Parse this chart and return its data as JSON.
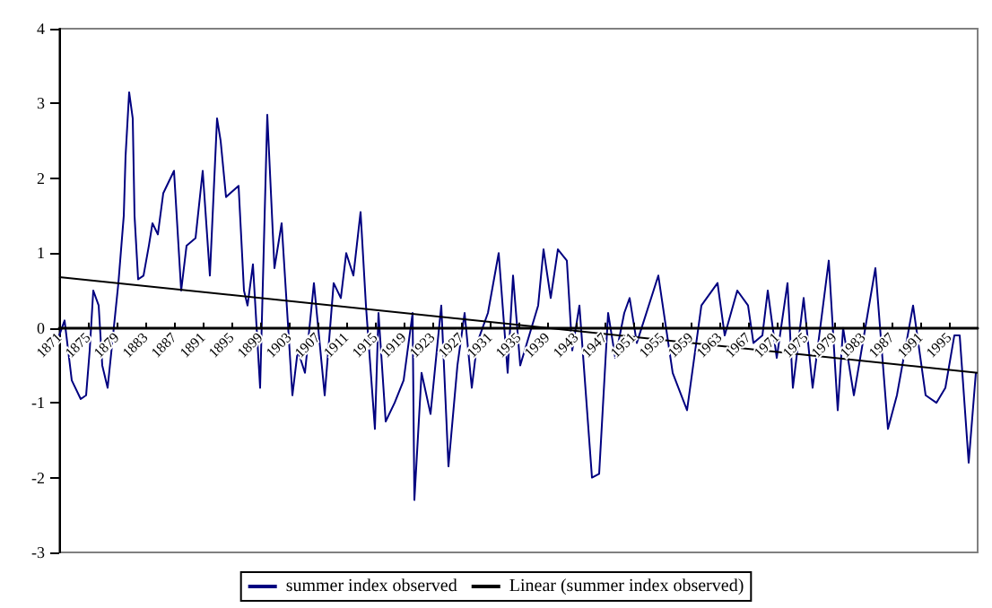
{
  "chart_data": {
    "type": "line",
    "xlim": [
      1871,
      1999
    ],
    "xticks": [
      1871,
      1875,
      1879,
      1883,
      1887,
      1891,
      1895,
      1899,
      1903,
      1907,
      1911,
      1915,
      1919,
      1923,
      1927,
      1931,
      1935,
      1939,
      1943,
      1947,
      1951,
      1955,
      1959,
      1963,
      1967,
      1971,
      1975,
      1979,
      1983,
      1987,
      1991,
      1995
    ],
    "ylim": [
      -3,
      4
    ],
    "yticks": [
      -3,
      -2,
      -1,
      0,
      1,
      2,
      3,
      4
    ],
    "grid": false,
    "legend": "bottom",
    "marker": "none",
    "line_style": "solid",
    "series": [
      {
        "name": "summer index observed",
        "color": "#000080",
        "x": [
          1871,
          1871.75,
          1872.75,
          1874,
          1874.75,
          1875.25,
          1875.75,
          1876.5,
          1877,
          1877.75,
          1878.5,
          1879.25,
          1880,
          1880.25,
          1880.75,
          1881.25,
          1881.5,
          1882,
          1882.75,
          1883.5,
          1884,
          1884.75,
          1885.5,
          1887,
          1888,
          1888.75,
          1890,
          1891,
          1892,
          1893,
          1893.5,
          1894.25,
          1896,
          1896.75,
          1897.25,
          1898,
          1899,
          1900,
          1901,
          1902,
          1903.5,
          1904.25,
          1905.25,
          1906.5,
          1908,
          1909.25,
          1910.25,
          1911,
          1912,
          1913,
          1913.75,
          1915,
          1915.5,
          1916.5,
          1917.75,
          1919,
          1920.25,
          1920.5,
          1921.5,
          1922.75,
          1924.25,
          1925.25,
          1926.5,
          1927.5,
          1928.5,
          1929.25,
          1930.75,
          1932.25,
          1933.5,
          1934.25,
          1935.25,
          1937.75,
          1938.5,
          1939.5,
          1940.5,
          1941.75,
          1942.5,
          1943.5,
          1945.25,
          1946.25,
          1947.5,
          1948.5,
          1949.75,
          1950.5,
          1951.5,
          1954.5,
          1956.5,
          1958.5,
          1960.5,
          1962.75,
          1963.75,
          1965.5,
          1967,
          1967.75,
          1969,
          1969.75,
          1971,
          1972.5,
          1973.25,
          1974.75,
          1976,
          1978.25,
          1979.5,
          1980.25,
          1981.75,
          1984.75,
          1986.5,
          1987.75,
          1990,
          1991.75,
          1993.25,
          1994.5,
          1995.75,
          1996.5,
          1997.75,
          1998.75
        ],
        "values": [
          -0.1,
          0.1,
          -0.7,
          -0.95,
          -0.9,
          -0.3,
          0.5,
          0.3,
          -0.5,
          -0.8,
          -0.1,
          0.6,
          1.5,
          2.3,
          3.15,
          2.8,
          1.5,
          0.65,
          0.7,
          1.1,
          1.4,
          1.25,
          1.8,
          2.1,
          0.5,
          1.1,
          1.2,
          2.1,
          0.7,
          2.8,
          2.5,
          1.75,
          1.9,
          0.5,
          0.3,
          0.85,
          -0.8,
          2.85,
          0.8,
          1.4,
          -0.9,
          -0.3,
          -0.6,
          0.6,
          -0.9,
          0.6,
          0.4,
          1.0,
          0.7,
          1.55,
          0.3,
          -1.35,
          0.2,
          -1.25,
          -1.0,
          -0.7,
          0.2,
          -2.3,
          -0.6,
          -1.15,
          0.3,
          -1.85,
          -0.5,
          0.2,
          -0.8,
          -0.2,
          0.2,
          1.0,
          -0.6,
          0.7,
          -0.5,
          0.3,
          1.05,
          0.4,
          1.05,
          0.9,
          -0.3,
          0.3,
          -2.0,
          -1.95,
          0.2,
          -0.4,
          0.2,
          0.4,
          -0.2,
          0.7,
          -0.6,
          -1.1,
          0.3,
          0.6,
          -0.1,
          0.5,
          0.3,
          -0.2,
          -0.1,
          0.5,
          -0.4,
          0.6,
          -0.8,
          0.4,
          -0.8,
          0.9,
          -1.1,
          0.0,
          -0.9,
          0.8,
          -1.35,
          -0.9,
          0.3,
          -0.9,
          -1.0,
          -0.8,
          -0.1,
          -0.1,
          -1.8,
          -0.6
        ]
      },
      {
        "name": "Linear (summer index observed)",
        "color": "#000000",
        "x": [
          1871,
          1999
        ],
        "values": [
          0.68,
          -0.6
        ]
      }
    ]
  }
}
